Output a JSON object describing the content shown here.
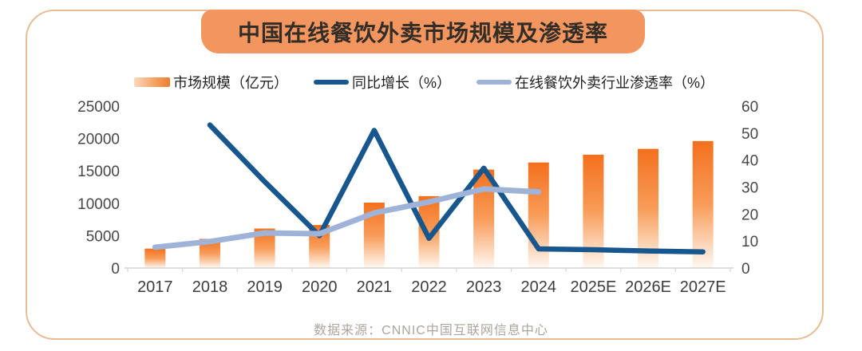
{
  "title": "中国在线餐饮外卖市场规模及渗透率",
  "source": "数据来源：CNNIC中国互联网信息中心",
  "legend": [
    {
      "label": "市场规模（亿元）",
      "swatch": "bar-gradient-swatch"
    },
    {
      "label": "同比增长（%）",
      "swatch": "dark-blue-line-swatch"
    },
    {
      "label": "在线餐饮外卖行业渗透率（%）",
      "swatch": "light-blue-line-swatch"
    }
  ],
  "palette": {
    "banner_bg": "#F2955E",
    "banner_text": "#322D27",
    "frame_border": "#E8BD96",
    "bar_top": "#F3701D",
    "bar_mid": "#F89C59",
    "bar_bottom": "#FFF8F1",
    "growth_line": "#17578E",
    "penetration_line": "#9FB3D9",
    "axis_text": "#474747",
    "x_label_text": "#3C3C3C",
    "axis_line": "#D4D4D4",
    "source_text": "#ACA59D"
  },
  "chart_data": {
    "type": "combo",
    "title": "中国在线餐饮外卖市场规模及渗透率",
    "categories": [
      "2017",
      "2018",
      "2019",
      "2020",
      "2021",
      "2022",
      "2023",
      "2024",
      "2025E",
      "2026E",
      "2027E"
    ],
    "series": [
      {
        "name": "市场规模（亿元）",
        "type": "bar",
        "axis": "left",
        "values": [
          3000,
          4500,
          6100,
          6650,
          10100,
          11100,
          15200,
          16300,
          17500,
          18400,
          19600
        ]
      },
      {
        "name": "同比增长（%）",
        "type": "line",
        "axis": "right",
        "color": "#17578E",
        "values": [
          null,
          53,
          32,
          12,
          51,
          11,
          37,
          7.1,
          6.8,
          6.3,
          6
        ]
      },
      {
        "name": "在线餐饮外卖行业渗透率（%）",
        "type": "line",
        "axis": "right",
        "color": "#9FB3D9",
        "values": [
          7.7,
          9.8,
          13,
          12.7,
          20.4,
          24.5,
          29.3,
          28.2,
          null,
          null,
          null
        ]
      }
    ],
    "left_axis": {
      "ticks": [
        0,
        5000,
        10000,
        15000,
        20000,
        25000
      ],
      "max": 25000
    },
    "right_axis": {
      "ticks": [
        0,
        10,
        20,
        30,
        40,
        50,
        60
      ],
      "max": 60
    },
    "grid": false,
    "legend_position": "top"
  }
}
